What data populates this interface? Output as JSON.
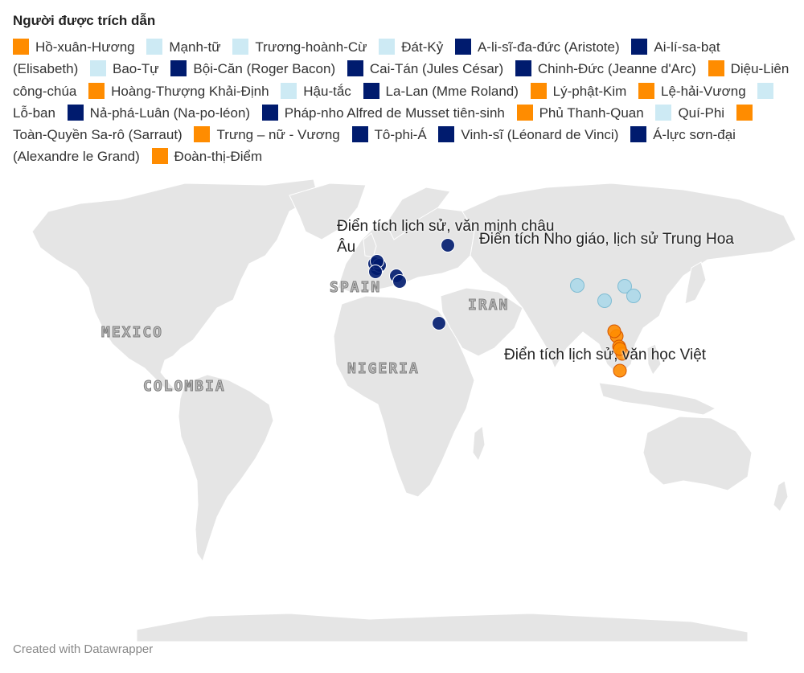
{
  "legend_title": "Người được trích dẫn",
  "colors": {
    "viet": "#ff8c00",
    "china": "#cdeaf4",
    "europe": "#001b6e"
  },
  "legend": [
    {
      "label": "Hồ-xuân-Hương",
      "group": "viet"
    },
    {
      "label": "Mạnh-tữ",
      "group": "china"
    },
    {
      "label": "Trương-hoành-Cừ",
      "group": "china"
    },
    {
      "label": "Đát-Kỷ",
      "group": "china"
    },
    {
      "label": "A-li-sĩ-đa-đức (Aristote)",
      "group": "europe"
    },
    {
      "label": "Ai-lí-sa-bạt (Elisabeth)",
      "group": "europe"
    },
    {
      "label": "Bao-Tự",
      "group": "china"
    },
    {
      "label": "Bội-Căn (Roger Bacon)",
      "group": "europe"
    },
    {
      "label": "Cai-Tán (Jules César)",
      "group": "europe"
    },
    {
      "label": "Chinh-Đức (Jeanne d'Arc)",
      "group": "europe"
    },
    {
      "label": "Diệu-Liên công-chúa",
      "group": "viet"
    },
    {
      "label": "Hoàng-Thượng Khải-Định",
      "group": "viet"
    },
    {
      "label": "Hậu-tắc",
      "group": "china"
    },
    {
      "label": "La-Lan (Mme Roland)",
      "group": "europe"
    },
    {
      "label": "Lý-phật-Kim",
      "group": "viet"
    },
    {
      "label": "Lệ-hải-Vương",
      "group": "viet"
    },
    {
      "label": "Lỗ-ban",
      "group": "china"
    },
    {
      "label": "Nả-phá-Luân (Na-po-léon)",
      "group": "europe"
    },
    {
      "label": "Pháp-nho Alfred de Musset tiên-sinh",
      "group": "europe"
    },
    {
      "label": "Phủ Thanh-Quan",
      "group": "viet"
    },
    {
      "label": "Quí-Phi",
      "group": "china"
    },
    {
      "label": "Toàn-Quyền Sa-rô (Sarraut)",
      "group": "viet"
    },
    {
      "label": "Trưng – nữ - Vương",
      "group": "viet"
    },
    {
      "label": "Tô-phi-Á",
      "group": "europe"
    },
    {
      "label": "Vinh-sĩ (Léonard de Vinci)",
      "group": "europe"
    },
    {
      "label": "Á-lực sơn-đại (Alexandre le Grand)",
      "group": "europe"
    },
    {
      "label": "Đoàn-thị-Điểm",
      "group": "viet"
    }
  ],
  "country_labels": {
    "mexico": "MEXICO",
    "colombia": "COLOMBIA",
    "spain": "SPAIN",
    "nigeria": "NIGERIA",
    "iran": "IRAN"
  },
  "annotations": {
    "europe": "Điển tích lịch sử, văn minh châu Âu",
    "china": "Điển tích Nho giáo, lịch sử Trung Hoa",
    "viet": "Điển tích lịch sử, văn học Việt"
  },
  "markers": [
    {
      "place": "Paris",
      "group": "europe"
    },
    {
      "place": "Paris",
      "group": "europe"
    },
    {
      "place": "Paris",
      "group": "europe"
    },
    {
      "place": "Paris",
      "group": "europe"
    },
    {
      "place": "Paris",
      "group": "europe"
    },
    {
      "place": "Rome",
      "group": "europe"
    },
    {
      "place": "Greece",
      "group": "europe"
    },
    {
      "place": "Turkey",
      "group": "europe"
    },
    {
      "place": "Egypt",
      "group": "europe"
    },
    {
      "place": "Xi'an",
      "group": "china"
    },
    {
      "place": "Shandong",
      "group": "china"
    },
    {
      "place": "Hunan",
      "group": "china"
    },
    {
      "place": "Zhejiang",
      "group": "china"
    },
    {
      "place": "Hanoi",
      "group": "viet"
    },
    {
      "place": "Hanoi",
      "group": "viet"
    },
    {
      "place": "Nghe An",
      "group": "viet"
    },
    {
      "place": "Hue",
      "group": "viet"
    },
    {
      "place": "Hue",
      "group": "viet"
    },
    {
      "place": "Saigon",
      "group": "viet"
    }
  ],
  "footer": "Created with Datawrapper"
}
